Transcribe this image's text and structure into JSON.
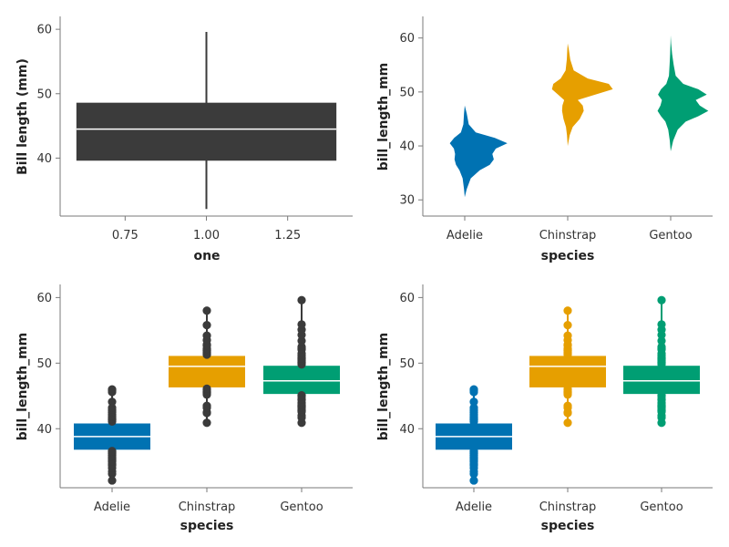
{
  "chart_data": [
    {
      "type": "boxplot",
      "xlabel": "one",
      "ylabel": "Bill length (mm)",
      "xticks": [
        0.75,
        1.0,
        1.25
      ],
      "xtick_labels": [
        "0.75",
        "1.00",
        "1.25"
      ],
      "xlim": [
        0.55,
        1.45
      ],
      "yticks": [
        40,
        50,
        60
      ],
      "ylim": [
        31,
        62
      ],
      "color": "#3b3b3b",
      "boxes": [
        {
          "x": 1.0,
          "q1": 39.6,
          "median": 44.5,
          "q3": 48.6,
          "whisker_low": 32.1,
          "whisker_high": 59.6,
          "x_from": 0.6,
          "x_to": 1.4
        }
      ]
    },
    {
      "type": "violin",
      "xlabel": "species",
      "ylabel": "bill_length_mm",
      "categories": [
        "Adelie",
        "Chinstrap",
        "Gentoo"
      ],
      "yticks": [
        30,
        40,
        50,
        60
      ],
      "ylim": [
        27,
        64
      ],
      "colors": [
        "#0072b2",
        "#e69f00",
        "#009e73"
      ],
      "side": "right",
      "violins": [
        {
          "category": "Adelie",
          "range": [
            30.5,
            47.5
          ],
          "profile": [
            [
              30.5,
              0.0
            ],
            [
              32,
              0.04
            ],
            [
              34,
              0.12
            ],
            [
              35.5,
              0.3
            ],
            [
              36.5,
              0.5
            ],
            [
              37.5,
              0.58
            ],
            [
              38.5,
              0.55
            ],
            [
              39.5,
              0.62
            ],
            [
              40.5,
              0.85
            ],
            [
              41.5,
              0.6
            ],
            [
              42.5,
              0.22
            ],
            [
              44,
              0.08
            ],
            [
              46,
              0.04
            ],
            [
              47.5,
              0.0
            ]
          ]
        },
        {
          "category": "Chinstrap",
          "range": [
            40,
            59
          ],
          "profile": [
            [
              40,
              0.0
            ],
            [
              42,
              0.04
            ],
            [
              43.5,
              0.1
            ],
            [
              45,
              0.24
            ],
            [
              46.5,
              0.32
            ],
            [
              47.5,
              0.3
            ],
            [
              48.5,
              0.2
            ],
            [
              49.5,
              0.55
            ],
            [
              50.5,
              0.9
            ],
            [
              51.5,
              0.82
            ],
            [
              52.5,
              0.4
            ],
            [
              54,
              0.12
            ],
            [
              56,
              0.05
            ],
            [
              58,
              0.02
            ],
            [
              59,
              0.0
            ]
          ]
        },
        {
          "category": "Gentoo",
          "range": [
            39,
            60.5
          ],
          "profile": [
            [
              39,
              0.0
            ],
            [
              41,
              0.05
            ],
            [
              43,
              0.14
            ],
            [
              44.5,
              0.3
            ],
            [
              45.5,
              0.55
            ],
            [
              46.5,
              0.75
            ],
            [
              47.5,
              0.58
            ],
            [
              48.5,
              0.5
            ],
            [
              49.5,
              0.72
            ],
            [
              50.5,
              0.55
            ],
            [
              51.5,
              0.25
            ],
            [
              53,
              0.1
            ],
            [
              55,
              0.06
            ],
            [
              57,
              0.03
            ],
            [
              59,
              0.01
            ],
            [
              60.5,
              0.0
            ]
          ]
        }
      ]
    },
    {
      "type": "boxplot",
      "xlabel": "species",
      "ylabel": "bill_length_mm",
      "categories": [
        "Adelie",
        "Chinstrap",
        "Gentoo"
      ],
      "yticks": [
        40,
        50,
        60
      ],
      "ylim": [
        31,
        62
      ],
      "box_colors": [
        "#0072b2",
        "#e69f00",
        "#009e73"
      ],
      "outlier_color": "#3b3b3b",
      "boxes": [
        {
          "category": "Adelie",
          "q1": 36.8,
          "median": 38.8,
          "q3": 40.8,
          "points": [
            32.1,
            33.1,
            33.5,
            34.0,
            34.4,
            34.6,
            35.0,
            35.1,
            35.3,
            35.5,
            35.7,
            35.9,
            36.0,
            36.2,
            36.4,
            36.5,
            36.6,
            41.1,
            41.3,
            41.4,
            41.5,
            41.6,
            41.8,
            42.0,
            42.2,
            42.5,
            42.7,
            42.9,
            43.2,
            44.1,
            45.6,
            45.8,
            46.0
          ]
        },
        {
          "category": "Chinstrap",
          "q1": 46.3,
          "median": 49.5,
          "q3": 51.1,
          "points": [
            40.9,
            42.4,
            42.5,
            43.2,
            43.5,
            45.2,
            45.4,
            45.5,
            45.6,
            45.7,
            45.9,
            46.1,
            51.3,
            51.4,
            51.5,
            51.7,
            51.9,
            52.0,
            52.2,
            52.7,
            52.8,
            53.5,
            54.2,
            55.8,
            58.0
          ]
        },
        {
          "category": "Gentoo",
          "q1": 45.3,
          "median": 47.3,
          "q3": 49.6,
          "points": [
            40.9,
            41.7,
            42.0,
            42.6,
            42.7,
            42.8,
            42.9,
            43.2,
            43.3,
            43.4,
            43.5,
            43.6,
            43.8,
            44.0,
            44.4,
            44.5,
            44.9,
            45.1,
            49.8,
            50.0,
            50.1,
            50.2,
            50.4,
            50.5,
            50.7,
            50.8,
            51.1,
            51.3,
            51.5,
            52.1,
            52.2,
            52.5,
            53.4,
            54.3,
            55.1,
            55.9,
            59.6
          ]
        }
      ]
    },
    {
      "type": "boxplot",
      "xlabel": "species",
      "ylabel": "bill_length_mm",
      "categories": [
        "Adelie",
        "Chinstrap",
        "Gentoo"
      ],
      "yticks": [
        40,
        50,
        60
      ],
      "ylim": [
        31,
        62
      ],
      "box_colors": [
        "#0072b2",
        "#e69f00",
        "#009e73"
      ],
      "outlier_color": "colored",
      "boxes": [
        {
          "category": "Adelie",
          "q1": 36.8,
          "median": 38.8,
          "q3": 40.8,
          "points": [
            32.1,
            33.1,
            33.5,
            34.0,
            34.4,
            34.6,
            35.0,
            35.1,
            35.3,
            35.5,
            35.7,
            35.9,
            36.0,
            36.2,
            36.4,
            36.5,
            36.6,
            41.1,
            41.3,
            41.4,
            41.5,
            41.6,
            41.8,
            42.0,
            42.2,
            42.5,
            42.7,
            42.9,
            43.2,
            44.1,
            45.6,
            45.8,
            46.0
          ]
        },
        {
          "category": "Chinstrap",
          "q1": 46.3,
          "median": 49.5,
          "q3": 51.1,
          "points": [
            40.9,
            42.4,
            42.5,
            43.2,
            43.5,
            45.2,
            45.4,
            45.5,
            45.6,
            45.7,
            45.9,
            46.1,
            51.3,
            51.4,
            51.5,
            51.7,
            51.9,
            52.0,
            52.2,
            52.7,
            52.8,
            53.5,
            54.2,
            55.8,
            58.0
          ]
        },
        {
          "category": "Gentoo",
          "q1": 45.3,
          "median": 47.3,
          "q3": 49.6,
          "points": [
            40.9,
            41.7,
            42.0,
            42.6,
            42.7,
            42.8,
            42.9,
            43.2,
            43.3,
            43.4,
            43.5,
            43.6,
            43.8,
            44.0,
            44.4,
            44.5,
            44.9,
            45.1,
            49.8,
            50.0,
            50.1,
            50.2,
            50.4,
            50.5,
            50.7,
            50.8,
            51.1,
            51.3,
            51.5,
            52.1,
            52.2,
            52.5,
            53.4,
            54.3,
            55.1,
            55.9,
            59.6
          ]
        }
      ]
    }
  ]
}
